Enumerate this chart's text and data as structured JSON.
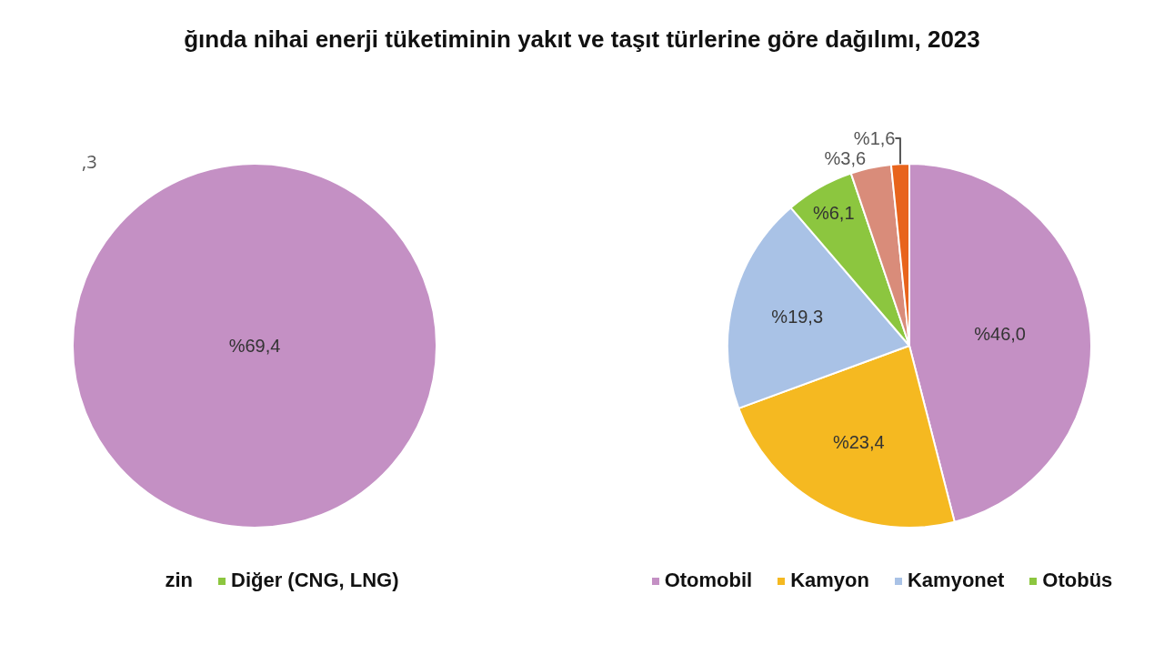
{
  "chart_data": [
    {
      "type": "pie",
      "title": "ğında nihai enerji tüketiminin yakıt ve taşıt türlerine göre dağılımı, 2023",
      "categories": [
        null,
        "zin",
        "Diğer (CNG, LNG)"
      ],
      "values": [
        69.4,
        null,
        null
      ],
      "colors": [
        "#c490c4",
        null,
        "#8cc63f"
      ],
      "value_labels": [
        "%69,4",
        null,
        null
      ],
      "annotations": [
        ",3"
      ],
      "legend": "bottom"
    },
    {
      "type": "pie",
      "categories": [
        "Otomobil",
        "Kamyon",
        "Kamyonet",
        "Otobüs",
        null,
        null
      ],
      "values": [
        46.0,
        23.4,
        19.3,
        6.1,
        3.6,
        1.6
      ],
      "colors": [
        "#c490c4",
        "#f5b921",
        "#a9c2e6",
        "#8cc63f",
        "#d98c7a",
        "#e8641c"
      ],
      "value_labels": [
        "%46,0",
        "%23,4",
        "%19,3",
        "%6,1",
        "%3,6",
        "%1,6"
      ],
      "legend": "bottom"
    }
  ]
}
